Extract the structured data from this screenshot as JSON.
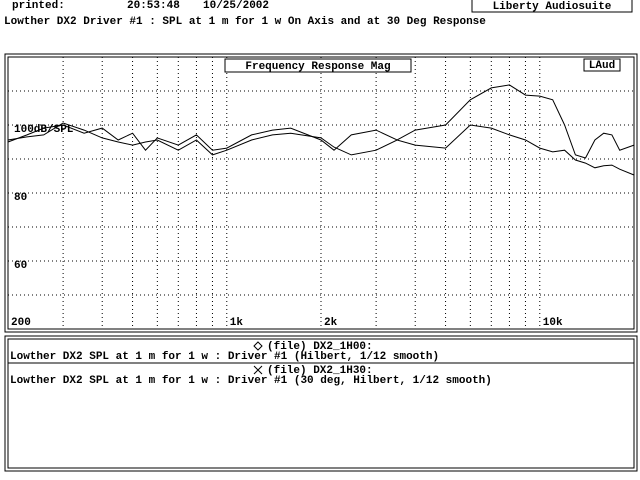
{
  "header": {
    "printed_label": "printed:",
    "time": "20:53:48",
    "date": "10/25/2002",
    "app": "Liberty Audiosuite"
  },
  "chart_data": {
    "type": "line",
    "title": "Lowther DX2 Driver #1 : SPL at 1 m for 1 w On Axis and at 30 Deg Response",
    "plot_title": "Frequency Response Mag",
    "badge": "LAud",
    "x_scale": "log",
    "xlim": [
      200,
      20000
    ],
    "xticks": [
      200,
      {
        "value": 1000,
        "label": "1k"
      },
      {
        "value": 2000,
        "label": "2k"
      },
      {
        "value": 10000,
        "label": "10k"
      }
    ],
    "x_minor_grid": [
      300,
      400,
      500,
      600,
      700,
      800,
      900,
      3000,
      4000,
      5000,
      6000,
      7000,
      8000,
      9000
    ],
    "ylim": [
      40,
      120
    ],
    "yticks": [
      {
        "value": 100,
        "label": "100dB/SPL"
      },
      80,
      60
    ],
    "y_minor_grid": [
      110,
      90,
      70,
      50
    ],
    "grid": true,
    "x": [
      200,
      230,
      260,
      300,
      350,
      400,
      450,
      500,
      550,
      600,
      700,
      800,
      900,
      1000,
      1200,
      1400,
      1600,
      2000,
      2200,
      2500,
      3000,
      3500,
      4000,
      5000,
      6000,
      7000,
      8000,
      9000,
      10000,
      11000,
      12000,
      13000,
      14000,
      15000,
      16000,
      17000,
      18000,
      20000
    ],
    "series": [
      {
        "name": "(file) DX2_1H00:",
        "description": "Lowther DX2 SPL at 1 m for 1 w : Driver #1 (Hilbert, 1/12 smooth)",
        "color": "#000000",
        "marker": "diamond",
        "values": [
          95.0,
          97.1,
          99.1,
          100.0,
          97.6,
          99.1,
          95.6,
          97.6,
          92.6,
          96.2,
          94.1,
          97.1,
          92.6,
          93.2,
          97.1,
          98.5,
          99.1,
          95.6,
          92.6,
          97.1,
          98.5,
          95.6,
          98.5,
          100.0,
          107.4,
          110.9,
          111.8,
          108.8,
          108.5,
          107.4,
          100.0,
          91.2,
          90.3,
          95.6,
          97.6,
          97.1,
          92.6,
          94.1
        ]
      },
      {
        "name": "(file) DX2_1H30:",
        "description": "Lowther DX2 SPL at 1 m for 1 w : Driver #1 (30 deg, Hilbert, 1/12 smooth)",
        "color": "#000000",
        "marker": "x",
        "values": [
          95.6,
          96.5,
          97.1,
          100.6,
          98.5,
          96.2,
          95.0,
          94.1,
          95.0,
          95.6,
          92.6,
          95.6,
          91.2,
          92.6,
          95.6,
          97.1,
          97.6,
          96.2,
          93.5,
          91.2,
          92.6,
          95.6,
          94.1,
          93.2,
          100.0,
          99.1,
          97.1,
          95.6,
          93.2,
          92.1,
          92.6,
          89.7,
          88.8,
          87.4,
          88.0,
          88.2,
          87.0,
          85.3
        ]
      }
    ]
  }
}
